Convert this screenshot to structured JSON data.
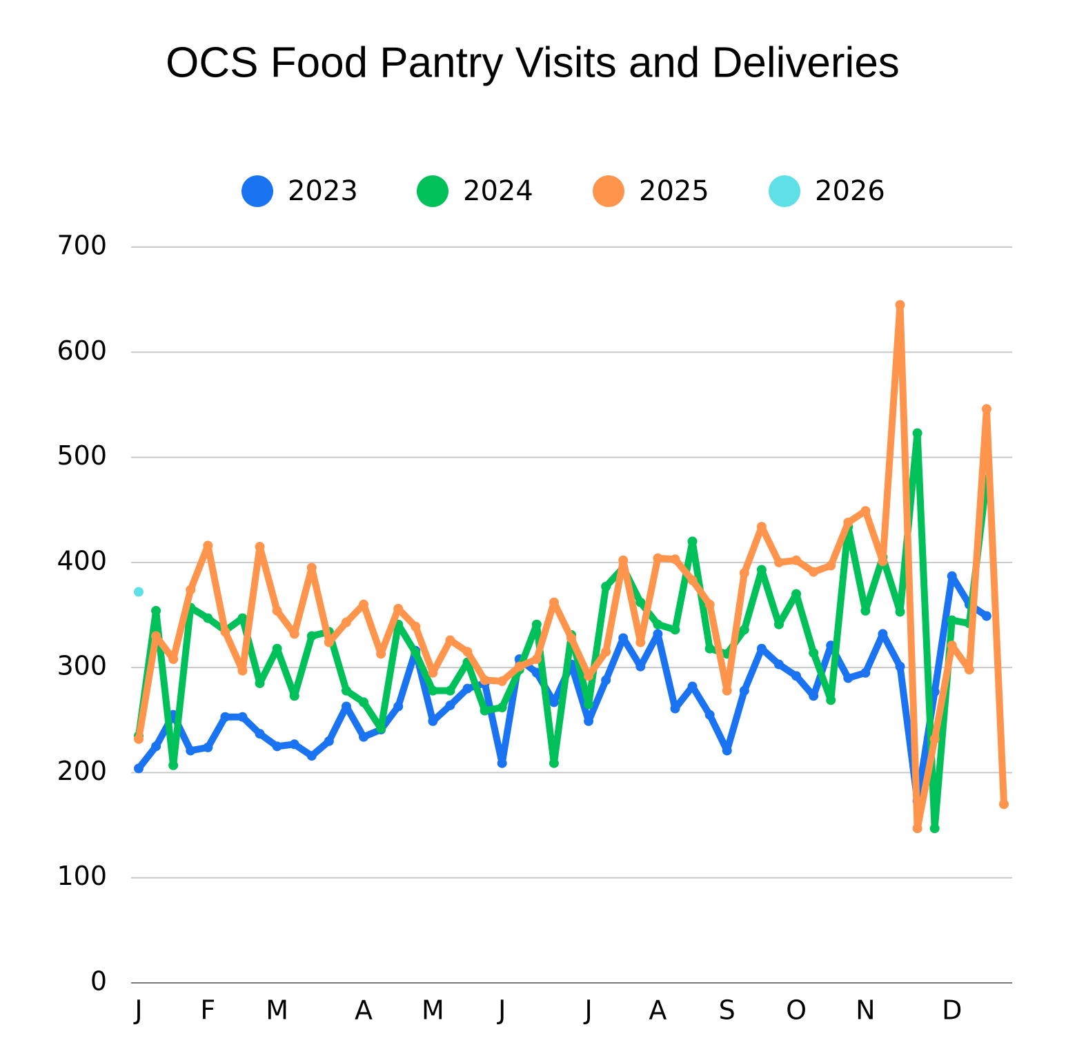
{
  "chart_data": {
    "type": "line",
    "title": "OCS Food Pantry Visits and Deliveries",
    "categories": [
      "J",
      null,
      null,
      null,
      "F",
      null,
      null,
      null,
      "M",
      null,
      null,
      null,
      null,
      "A",
      null,
      null,
      null,
      "M",
      null,
      null,
      null,
      "J",
      null,
      null,
      null,
      null,
      "J",
      null,
      null,
      null,
      "A",
      null,
      null,
      null,
      "S",
      null,
      null,
      null,
      "O",
      null,
      null,
      null,
      "N",
      null,
      null,
      null,
      null,
      "D",
      null,
      null,
      null
    ],
    "series": [
      {
        "name": "2023",
        "color": "#1a73f0",
        "values": [
          204,
          225,
          255,
          221,
          224,
          253,
          253,
          237,
          225,
          227,
          216,
          230,
          263,
          234,
          241,
          263,
          316,
          249,
          264,
          280,
          285,
          209,
          308,
          295,
          267,
          303,
          249,
          288,
          328,
          301,
          332,
          261,
          282,
          255,
          221,
          278,
          318,
          303,
          292,
          273,
          321,
          290,
          295,
          332,
          301,
          173,
          277,
          387,
          360,
          349,
          null
        ]
      },
      {
        "name": "2024",
        "color": "#00c05a",
        "values": [
          235,
          354,
          207,
          357,
          347,
          335,
          347,
          285,
          318,
          273,
          330,
          334,
          278,
          267,
          242,
          341,
          314,
          278,
          278,
          305,
          259,
          262,
          298,
          341,
          209,
          331,
          265,
          377,
          395,
          362,
          341,
          336,
          420,
          318,
          313,
          336,
          393,
          341,
          370,
          314,
          269,
          434,
          354,
          405,
          353,
          523,
          147,
          345,
          342,
          479,
          null
        ]
      },
      {
        "name": "2025",
        "color": "#ff944d",
        "values": [
          232,
          330,
          308,
          374,
          416,
          334,
          297,
          415,
          354,
          332,
          395,
          324,
          343,
          360,
          313,
          356,
          339,
          295,
          326,
          315,
          288,
          287,
          301,
          308,
          362,
          328,
          292,
          315,
          402,
          324,
          404,
          403,
          383,
          360,
          278,
          390,
          434,
          400,
          402,
          391,
          397,
          438,
          449,
          401,
          645,
          147,
          232,
          321,
          298,
          546,
          170
        ]
      },
      {
        "name": "2026",
        "color": "#5ee0e6",
        "values": [
          372,
          null,
          null,
          null,
          null,
          null,
          null,
          null,
          null,
          null,
          null,
          null,
          null,
          null,
          null,
          null,
          null,
          null,
          null,
          null,
          null,
          null,
          null,
          null,
          null,
          null,
          null,
          null,
          null,
          null,
          null,
          null,
          null,
          null,
          null,
          null,
          null,
          null,
          null,
          null,
          null,
          null,
          null,
          null,
          null,
          null,
          null,
          null,
          null,
          null,
          null
        ]
      }
    ],
    "ylim": [
      0,
      700
    ],
    "yticks": [
      0,
      100,
      200,
      300,
      400,
      500,
      600,
      700
    ],
    "grid": true
  }
}
